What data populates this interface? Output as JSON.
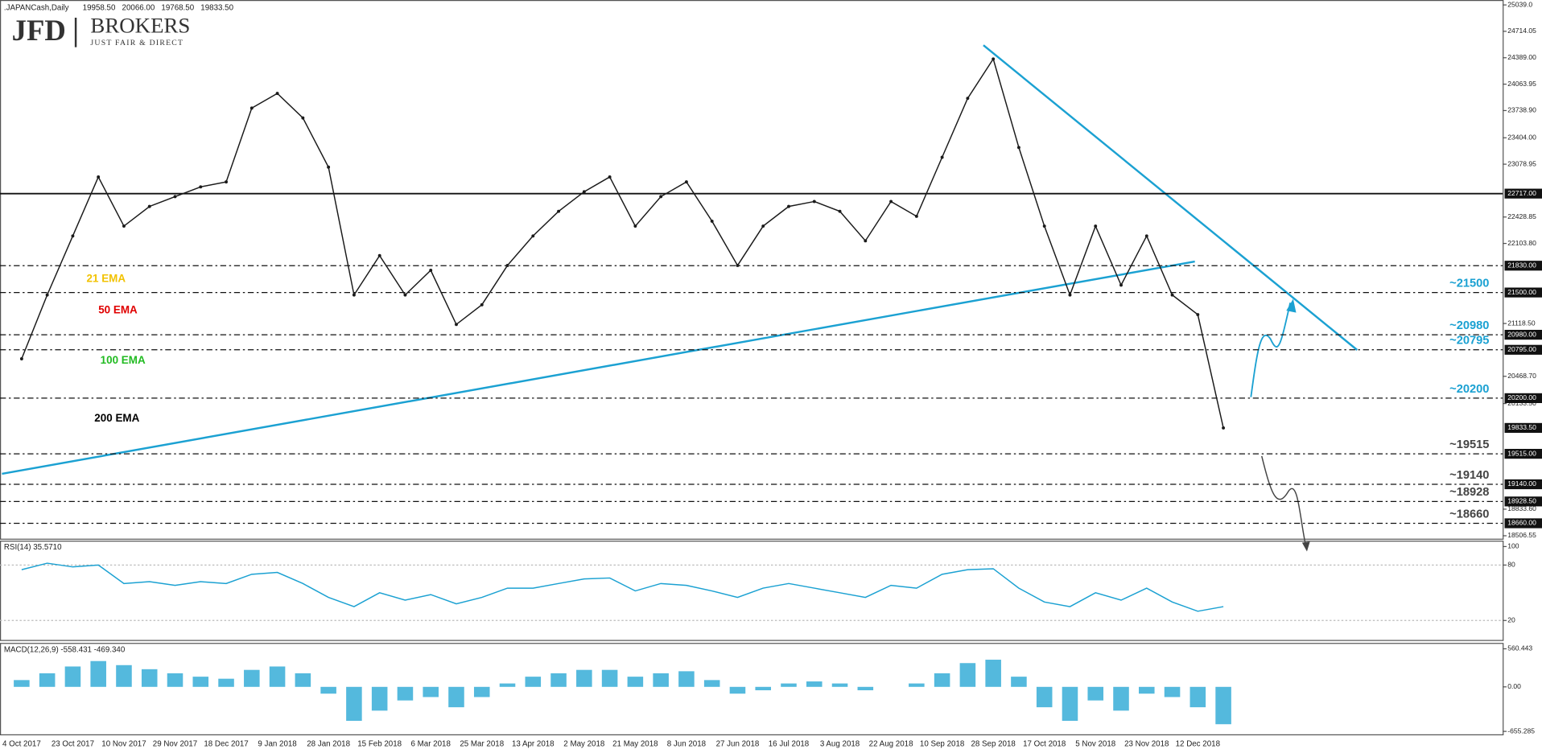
{
  "chart_data": [
    {
      "type": "line",
      "title": ".JAPANCash,Daily",
      "ohlc": [
        {
          "value": 19958.5,
          "label": "19958.50"
        },
        {
          "value": 20066,
          "label": "20066.00"
        },
        {
          "value": 19768.5,
          "label": "19768.50"
        },
        {
          "value": 19833.5,
          "label": "19833.50"
        }
      ],
      "brand": "JFD",
      "brand_word": "BROKERS",
      "tagline": "JUST FAIR & DIRECT",
      "categories": [
        "4 Oct 2017",
        null,
        "23 Oct 2017",
        null,
        "10 Nov 2017",
        null,
        "29 Nov 2017",
        null,
        "18 Dec 2017",
        null,
        "9 Jan 2018",
        null,
        "28 Jan 2018",
        null,
        "15 Feb 2018",
        null,
        "6 Mar 2018",
        null,
        "25 Mar 2018",
        null,
        "13 Apr 2018",
        null,
        "2 May 2018",
        null,
        "21 May 2018",
        null,
        "8 Jun 2018",
        null,
        "27 Jun 2018",
        null,
        "16 Jul 2018",
        null,
        "3 Aug 2018",
        null,
        "22 Aug 2018",
        null,
        "10 Sep 2018",
        null,
        "28 Sep 2018",
        null,
        "17 Oct 2018",
        null,
        "5 Nov 2018",
        null,
        "23 Nov 2018",
        null,
        "12 Dec 2018",
        null
      ],
      "values": [
        20684,
        21470,
        22196,
        22922,
        22317,
        22559,
        22680,
        22800,
        22861,
        23769,
        23950,
        23648,
        23043,
        21470,
        21954,
        21470,
        21773,
        21107,
        21349,
        21833,
        22196,
        22499,
        22740,
        22922,
        22317,
        22680,
        22861,
        22378,
        21833,
        22317,
        22559,
        22620,
        22499,
        22136,
        22620,
        22438,
        23164,
        23890,
        24374,
        23285,
        22317,
        21470,
        22317,
        21591,
        22196,
        21470,
        21228,
        19833.5
      ],
      "color": "#1a1a1a",
      "ylim": [
        18506.55,
        25039
      ],
      "yticks": [
        {
          "value": 25039,
          "label": "25039.0"
        },
        {
          "value": 24714.05,
          "label": "24714.05"
        },
        {
          "value": 24389,
          "label": "24389.00"
        },
        {
          "value": 24063.95,
          "label": "24063.95"
        },
        {
          "value": 23738.9,
          "label": "23738.90"
        },
        {
          "value": 23404,
          "label": "23404.00"
        },
        {
          "value": 23078.95,
          "label": "23078.95"
        },
        {
          "value": 22428.85,
          "label": "22428.85"
        },
        {
          "value": 22103.8,
          "label": "22103.80"
        },
        {
          "value": 21118.5,
          "label": "21118.50"
        },
        {
          "value": 20468.7,
          "label": "20468.70"
        },
        {
          "value": 20133.5,
          "label": "20133.50"
        },
        {
          "value": 18833.6,
          "label": "18833.60"
        },
        {
          "value": 18506.55,
          "label": "18506.55"
        }
      ],
      "levels": [
        {
          "value": 22717,
          "label": "22717.00",
          "style": "solid"
        },
        {
          "value": 21830,
          "label": "21830.00",
          "style": "dashed"
        },
        {
          "value": 21500,
          "label": "21500.00",
          "style": "dashed",
          "annotation": "~21500",
          "annotation_color": "#1ba1d2"
        },
        {
          "value": 20980,
          "label": "20980.00",
          "style": "dashed",
          "annotation": "~20980",
          "annotation_color": "#1ba1d2"
        },
        {
          "value": 20795,
          "label": "20795.00",
          "style": "dashed",
          "annotation": "~20795",
          "annotation_color": "#1ba1d2"
        },
        {
          "value": 20200,
          "label": "20200.00",
          "style": "dashed",
          "annotation": "~20200",
          "annotation_color": "#1ba1d2"
        },
        {
          "value": 19833.5,
          "label": "19833.50",
          "style": "none"
        },
        {
          "value": 19515,
          "label": "19515.00",
          "style": "dashed",
          "annotation": "~19515",
          "annotation_color": "#444444"
        },
        {
          "value": 19140,
          "label": "19140.00",
          "style": "dashed",
          "annotation": "~19140",
          "annotation_color": "#444444"
        },
        {
          "value": 18928.5,
          "label": "18928.50",
          "style": "dashed",
          "annotation": "~18928",
          "annotation_color": "#444444"
        },
        {
          "value": 18660,
          "label": "18660.00",
          "style": "dashed",
          "annotation": "~18660",
          "annotation_color": "#444444"
        }
      ],
      "ema_labels": [
        {
          "text": "21 EMA",
          "color": "#f2c200"
        },
        {
          "text": "50 EMA",
          "color": "#e00000"
        },
        {
          "text": "100 EMA",
          "color": "#22bb22"
        },
        {
          "text": "200 EMA",
          "color": "#000000"
        }
      ]
    },
    {
      "type": "line",
      "title": "RSI(14) 35.5710",
      "values": [
        75,
        82,
        78,
        80,
        60,
        62,
        58,
        62,
        60,
        70,
        72,
        60,
        45,
        35,
        50,
        42,
        48,
        38,
        45,
        55,
        55,
        60,
        65,
        66,
        52,
        60,
        58,
        52,
        45,
        55,
        60,
        55,
        50,
        45,
        58,
        55,
        70,
        75,
        76,
        55,
        40,
        35,
        50,
        42,
        55,
        40,
        30,
        35
      ],
      "color": "#1ba1d2",
      "ylim": [
        0,
        100
      ],
      "yticks": [
        100,
        80,
        20
      ]
    },
    {
      "type": "bar",
      "title": "MACD(12,26,9) -558.431 -469.340",
      "values": [
        100,
        200,
        300,
        380,
        320,
        260,
        200,
        150,
        120,
        250,
        300,
        200,
        -100,
        -500,
        -350,
        -200,
        -150,
        -300,
        -150,
        50,
        150,
        200,
        250,
        250,
        150,
        200,
        230,
        100,
        -100,
        -50,
        50,
        80,
        50,
        -50,
        0,
        50,
        200,
        350,
        400,
        150,
        -300,
        -500,
        -200,
        -350,
        -100,
        -150,
        -300,
        -550
      ],
      "color": "#1ba1d2",
      "ylim": [
        -655.285,
        560.443
      ],
      "yticks": [
        560.443,
        {
          "value": 0,
          "label": "0.00"
        },
        -655.285
      ]
    }
  ]
}
